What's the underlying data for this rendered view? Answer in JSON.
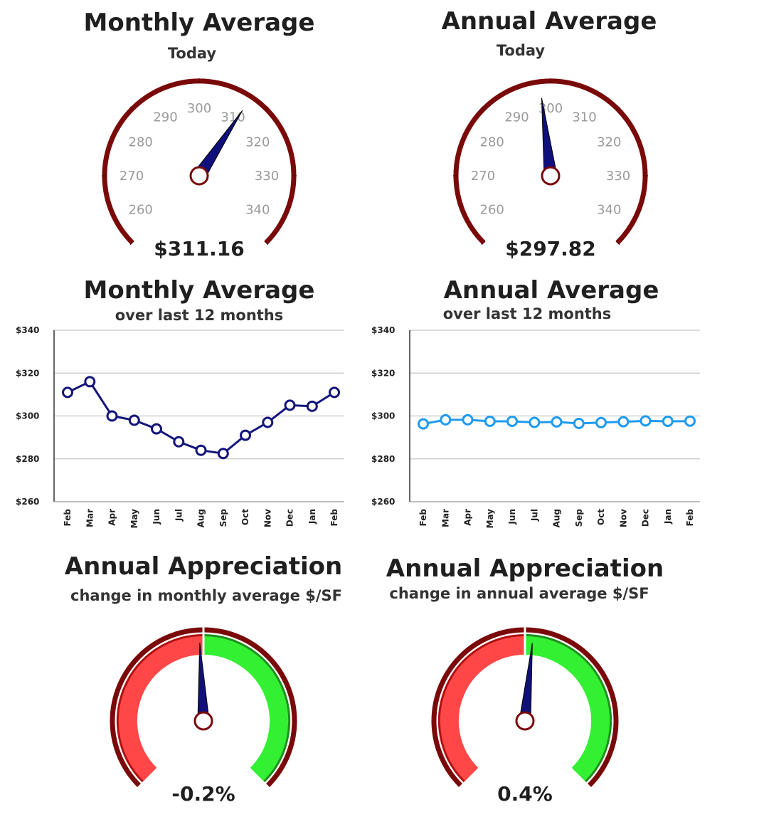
{
  "gauges": [
    {
      "title": "Monthly Average",
      "subtitle": "Today",
      "value_label": "$311.16",
      "value": 311.16,
      "min": 255,
      "max": 345,
      "ticks": [
        "260",
        "270",
        "280",
        "290",
        "300",
        "310",
        "320",
        "330",
        "340"
      ]
    },
    {
      "title": "Annual Average",
      "subtitle": "Today",
      "value_label": "$297.82",
      "value": 297.82,
      "min": 255,
      "max": 345,
      "ticks": [
        "260",
        "270",
        "280",
        "290",
        "300",
        "310",
        "320",
        "330",
        "340"
      ]
    }
  ],
  "chart_data": [
    {
      "type": "line",
      "title": "Monthly Average",
      "subtitle": "over last 12 months",
      "categories": [
        "Feb",
        "Mar",
        "Apr",
        "May",
        "Jun",
        "Jul",
        "Aug",
        "Sep",
        "Oct",
        "Nov",
        "Dec",
        "Jan",
        "Feb"
      ],
      "values": [
        311,
        316,
        300,
        298,
        294,
        288,
        284,
        282.5,
        291,
        297,
        305,
        304.5,
        311
      ],
      "ylim": [
        260,
        340
      ],
      "yticks": [
        "$340",
        "$320",
        "$300",
        "$280",
        "$260"
      ],
      "color": "#14167a"
    },
    {
      "type": "line",
      "title": "Annual Average",
      "subtitle": "over last 12 months",
      "categories": [
        "Feb",
        "Mar",
        "Apr",
        "May",
        "Jun",
        "Jul",
        "Aug",
        "Sep",
        "Oct",
        "Nov",
        "Dec",
        "Jan",
        "Feb"
      ],
      "values": [
        296.3,
        298.2,
        298.2,
        297.5,
        297.5,
        297,
        297.2,
        296.5,
        296.9,
        297.3,
        297.7,
        297.5,
        297.6
      ],
      "ylim": [
        260,
        340
      ],
      "yticks": [
        "$340",
        "$320",
        "$300",
        "$280",
        "$260"
      ],
      "color": "#1e9bf0"
    }
  ],
  "appreciation": [
    {
      "title": "Annual Appreciation",
      "subtitle": "change in monthly average $/SF",
      "value_label": "-0.2%",
      "value": -0.2
    },
    {
      "title": "Annual Appreciation",
      "subtitle": "change in annual average $/SF",
      "value_label": "0.4%",
      "value": 0.4
    }
  ],
  "colors": {
    "rim": "#7a0a0a",
    "needle": "#10107a",
    "negative": "#ff4747",
    "positive": "#33f033"
  }
}
